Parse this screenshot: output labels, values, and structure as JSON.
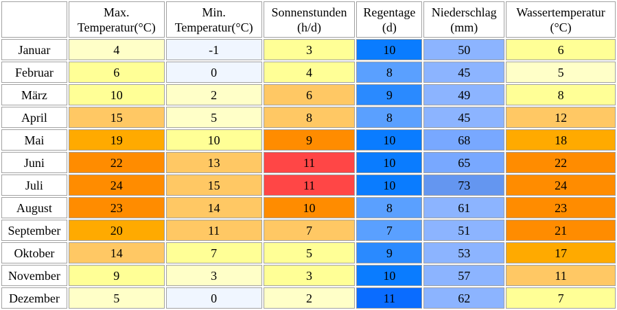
{
  "headers": [
    {
      "line1": "Max.",
      "line2": "Temperatur(°C)"
    },
    {
      "line1": "Min.",
      "line2": "Temperatur(°C)"
    },
    {
      "line1": "Sonnenstunden",
      "line2": "(h/d)"
    },
    {
      "line1": "Regentage",
      "line2": "(d)"
    },
    {
      "line1": "Niederschlag",
      "line2": "(mm)"
    },
    {
      "line1": "Wassertemperatur",
      "line2": "(°C)"
    }
  ],
  "rows": [
    {
      "month": "Januar",
      "values": [
        "4",
        "-1",
        "3",
        "10",
        "50",
        "6"
      ],
      "colors": [
        "#ffffc8",
        "#f0f6ff",
        "#ffff96",
        "#0a7cff",
        "#8cb4ff",
        "#ffff96"
      ]
    },
    {
      "month": "Februar",
      "values": [
        "6",
        "0",
        "4",
        "8",
        "45",
        "5"
      ],
      "colors": [
        "#ffff96",
        "#f0f6ff",
        "#ffff96",
        "#5aa0ff",
        "#8cb4ff",
        "#ffffc8"
      ]
    },
    {
      "month": "März",
      "values": [
        "10",
        "2",
        "6",
        "9",
        "49",
        "8"
      ],
      "colors": [
        "#ffff96",
        "#ffffc8",
        "#ffc864",
        "#2a8aff",
        "#8cb4ff",
        "#ffff96"
      ]
    },
    {
      "month": "April",
      "values": [
        "15",
        "5",
        "8",
        "8",
        "45",
        "12"
      ],
      "colors": [
        "#ffc864",
        "#ffffc8",
        "#ffc864",
        "#5aa0ff",
        "#8cb4ff",
        "#ffc864"
      ]
    },
    {
      "month": "Mai",
      "values": [
        "19",
        "10",
        "9",
        "10",
        "68",
        "18"
      ],
      "colors": [
        "#ffaa00",
        "#ffff96",
        "#ff8c00",
        "#0a7cff",
        "#78a8ff",
        "#ffaa00"
      ]
    },
    {
      "month": "Juni",
      "values": [
        "22",
        "13",
        "11",
        "10",
        "65",
        "22"
      ],
      "colors": [
        "#ff8c00",
        "#ffc864",
        "#ff4646",
        "#0a7cff",
        "#78a8ff",
        "#ff8c00"
      ]
    },
    {
      "month": "Juli",
      "values": [
        "24",
        "15",
        "11",
        "10",
        "73",
        "24"
      ],
      "colors": [
        "#ff8c00",
        "#ffc864",
        "#ff4646",
        "#0a7cff",
        "#6496f0",
        "#ff8c00"
      ]
    },
    {
      "month": "August",
      "values": [
        "23",
        "14",
        "10",
        "8",
        "61",
        "23"
      ],
      "colors": [
        "#ff8c00",
        "#ffc864",
        "#ff8c00",
        "#5aa0ff",
        "#8cb4ff",
        "#ff8c00"
      ]
    },
    {
      "month": "September",
      "values": [
        "20",
        "11",
        "7",
        "7",
        "51",
        "21"
      ],
      "colors": [
        "#ffaa00",
        "#ffc864",
        "#ffc864",
        "#5aa0ff",
        "#8cb4ff",
        "#ff8c00"
      ]
    },
    {
      "month": "Oktober",
      "values": [
        "14",
        "7",
        "5",
        "9",
        "53",
        "17"
      ],
      "colors": [
        "#ffc864",
        "#ffff96",
        "#ffff96",
        "#2a8aff",
        "#8cb4ff",
        "#ffaa00"
      ]
    },
    {
      "month": "November",
      "values": [
        "9",
        "3",
        "3",
        "10",
        "57",
        "11"
      ],
      "colors": [
        "#ffff96",
        "#ffffc8",
        "#ffff96",
        "#0a7cff",
        "#8cb4ff",
        "#ffc864"
      ]
    },
    {
      "month": "Dezember",
      "values": [
        "5",
        "0",
        "2",
        "11",
        "62",
        "7"
      ],
      "colors": [
        "#ffffc8",
        "#f0f6ff",
        "#ffffc8",
        "#0a6cff",
        "#8cb4ff",
        "#ffff96"
      ]
    }
  ]
}
